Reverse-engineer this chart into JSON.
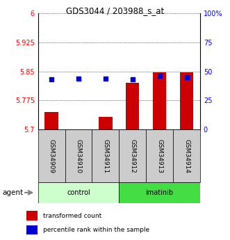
{
  "title": "GDS3044 / 203988_s_at",
  "samples": [
    "GSM34909",
    "GSM34910",
    "GSM34911",
    "GSM34912",
    "GSM34913",
    "GSM34914"
  ],
  "groups": [
    "control",
    "control",
    "control",
    "imatinib",
    "imatinib",
    "imatinib"
  ],
  "bar_values": [
    5.745,
    5.701,
    5.732,
    5.82,
    5.848,
    5.848
  ],
  "percentile_values": [
    43,
    44,
    44,
    43,
    46,
    45
  ],
  "ylim": [
    5.7,
    6.0
  ],
  "yticks": [
    5.7,
    5.775,
    5.85,
    5.925,
    6.0
  ],
  "ytick_labels": [
    "5.7",
    "5.775",
    "5.85",
    "5.925",
    "6"
  ],
  "y2lim": [
    0,
    100
  ],
  "y2ticks": [
    0,
    25,
    50,
    75,
    100
  ],
  "y2tick_labels": [
    "0",
    "25",
    "50",
    "75",
    "100%"
  ],
  "bar_color": "#cc0000",
  "dot_color": "#0000cc",
  "control_color": "#ccffcc",
  "imatinib_color": "#44dd44",
  "sample_bg_color": "#cccccc",
  "xlabel": "agent"
}
